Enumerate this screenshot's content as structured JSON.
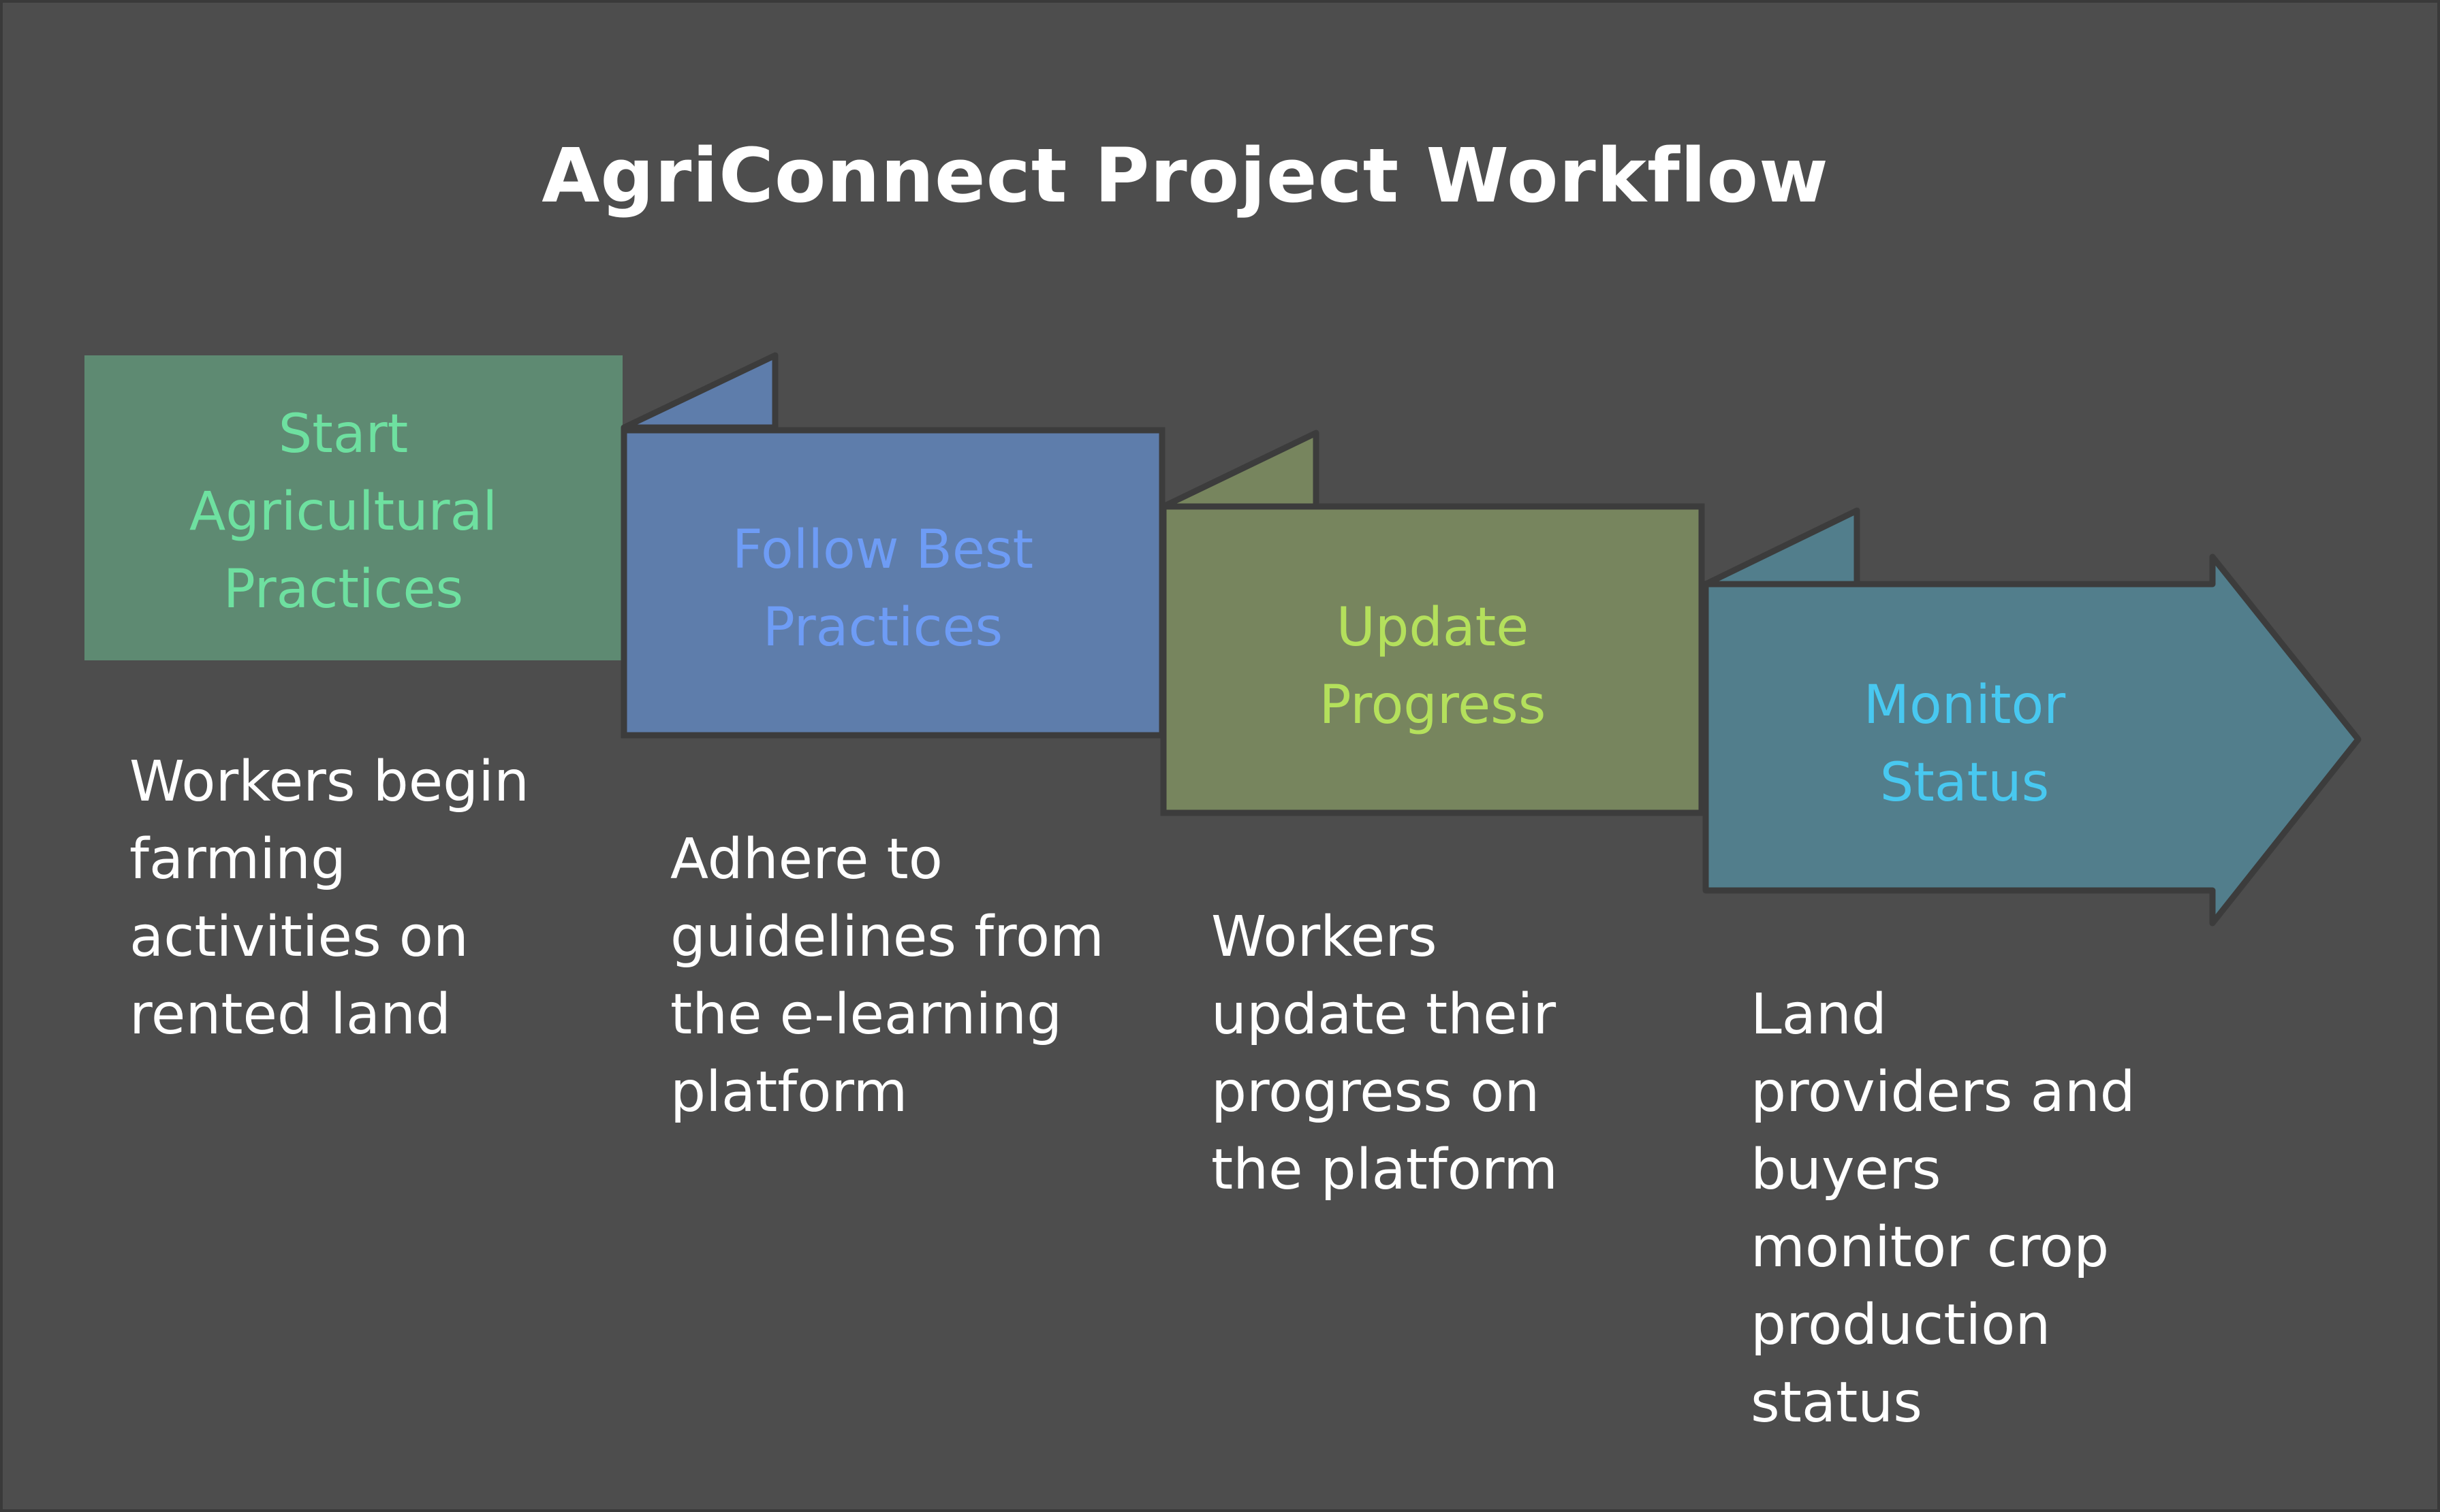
{
  "title": "AgriConnect Project Workflow",
  "colors": {
    "background": "#4d4d4d",
    "step1_fill": "#5e8a72",
    "step1_text": "#6ee0a0",
    "step2_fill": "#5e7dab",
    "step2_text": "#6e9cf5",
    "step3_fill": "#77855e",
    "step3_text": "#b4e05c",
    "step4_fill": "#527e8c",
    "step4_text": "#48c8f0",
    "outline": "#3c3c3c"
  },
  "steps": [
    {
      "label": "Start\nAgricultural\nPractices",
      "description": "Workers begin\nfarming\nactivities on\nrented land"
    },
    {
      "label": "Follow Best\nPractices",
      "description": "Adhere to\nguidelines from\nthe e-learning\nplatform"
    },
    {
      "label": "Update\nProgress",
      "description": "Workers\nupdate their\nprogress on\nthe platform"
    },
    {
      "label": "Monitor\nStatus",
      "description": "Land\nproviders and\nbuyers\nmonitor crop\nproduction\nstatus"
    }
  ]
}
